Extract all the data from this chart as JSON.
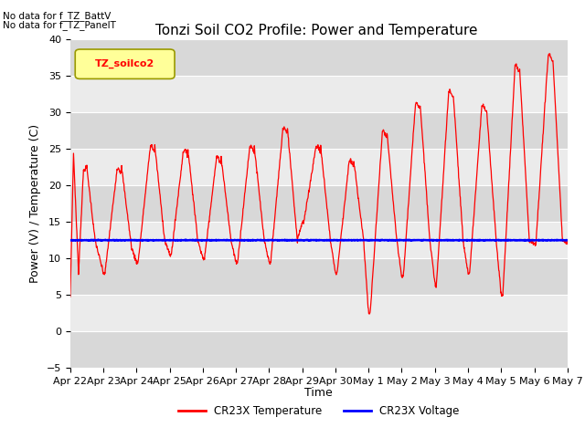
{
  "title": "Tonzi Soil CO2 Profile: Power and Temperature",
  "ylabel": "Power (V) / Temperature (C)",
  "xlabel": "Time",
  "ylim": [
    -5,
    40
  ],
  "yticks": [
    -5,
    0,
    5,
    10,
    15,
    20,
    25,
    30,
    35,
    40
  ],
  "xtick_labels": [
    "Apr 22",
    "Apr 23",
    "Apr 24",
    "Apr 25",
    "Apr 26",
    "Apr 27",
    "Apr 28",
    "Apr 29",
    "Apr 30",
    "May 1",
    "May 2",
    "May 3",
    "May 4",
    "May 5",
    "May 6",
    "May 7"
  ],
  "no_data_text1": "No data for f_TZ_BattV",
  "no_data_text2": "No data for f_TZ_PanelT",
  "legend_label_text": "TZ_soilco2",
  "temp_label": "CR23X Temperature",
  "volt_label": "CR23X Voltage",
  "temp_color": "#ff0000",
  "volt_color": "#0000ff",
  "plot_bg_light": "#ebebeb",
  "plot_bg_dark": "#d8d8d8",
  "grid_color": "#ffffff",
  "fig_bg_color": "#ffffff",
  "voltage_value": 12.5,
  "title_fontsize": 11,
  "tick_fontsize": 8,
  "label_fontsize": 9
}
